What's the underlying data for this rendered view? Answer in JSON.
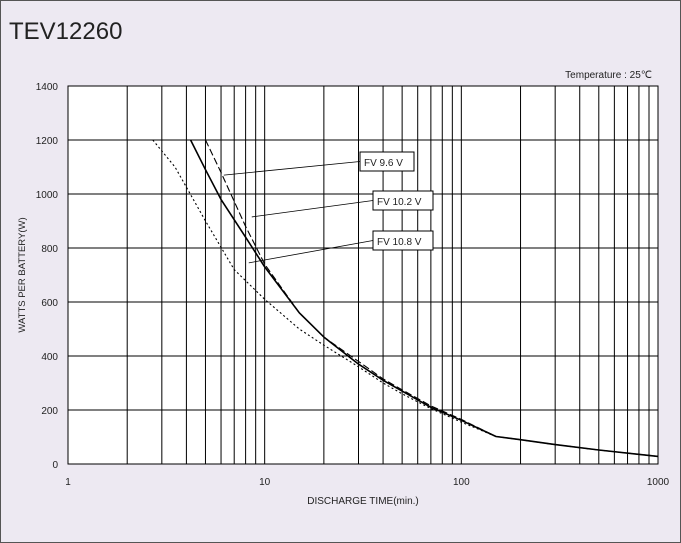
{
  "chart_data": {
    "type": "line",
    "title": "TEV12260",
    "annotation": "Temperature : 25℃",
    "xlabel": "DISCHARGE TIME(min.)",
    "ylabel": "WATTS PER BATTERY(W)",
    "x_scale": "log",
    "xlim": [
      1,
      1000
    ],
    "ylim": [
      0,
      1400
    ],
    "grid": true,
    "x_ticks": [
      "1",
      "10",
      "100",
      "1000"
    ],
    "y_ticks": [
      "0",
      "200",
      "400",
      "600",
      "800",
      "1000",
      "1200",
      "1400"
    ],
    "series": [
      {
        "name": "FV 9.6 V",
        "line_style": "dashed",
        "x": [
          5.0,
          6.0,
          8.0,
          10.0,
          15.0,
          20.0,
          30.0,
          40.0,
          50.0,
          70.0,
          100.0,
          150.0,
          200.0,
          300.0,
          500.0,
          1000.0
        ],
        "y": [
          1200,
          1080,
          880,
          740,
          560,
          470,
          380,
          315,
          275,
          215,
          165,
          102,
          90,
          72,
          52,
          28
        ]
      },
      {
        "name": "FV 10.2 V",
        "line_style": "solid",
        "x": [
          4.2,
          5.0,
          6.0,
          8.0,
          10.0,
          15.0,
          20.0,
          30.0,
          40.0,
          50.0,
          70.0,
          100.0,
          150.0,
          200.0,
          300.0,
          500.0,
          1000.0
        ],
        "y": [
          1200,
          1090,
          980,
          840,
          730,
          560,
          470,
          370,
          310,
          270,
          210,
          162,
          102,
          90,
          72,
          52,
          28
        ]
      },
      {
        "name": "FV 10.8 V",
        "line_style": "dotted",
        "x": [
          2.7,
          3.5,
          5.0,
          7.0,
          10.0,
          15.0,
          20.0,
          30.0,
          40.0,
          50.0,
          70.0,
          100.0,
          150.0,
          200.0,
          300.0,
          500.0,
          1000.0
        ],
        "y": [
          1200,
          1100,
          900,
          720,
          610,
          500,
          440,
          360,
          300,
          260,
          205,
          155,
          102,
          90,
          72,
          52,
          28
        ]
      }
    ],
    "callouts": [
      {
        "label": "FV 9.6 V",
        "series": 0,
        "point_x": 6.2,
        "point_y": 1070
      },
      {
        "label": "FV 10.2 V",
        "series": 1,
        "point_x": 8.6,
        "point_y": 915
      },
      {
        "label": "FV 10.8 V",
        "series": 2,
        "point_x": 8.3,
        "point_y": 745
      }
    ]
  }
}
